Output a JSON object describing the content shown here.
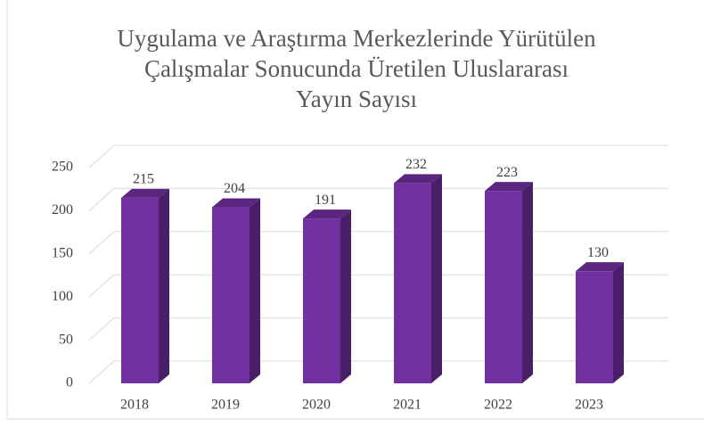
{
  "chart_data": {
    "type": "bar3d",
    "title": [
      "Uygulama  ve Araştırma  Merkezlerinde  Yürütülen",
      "Çalışmalar  Sonucunda  Üretilen Uluslararası",
      "Yayın  Sayısı"
    ],
    "categories": [
      "2018",
      "2019",
      "2020",
      "2021",
      "2022",
      "2023"
    ],
    "values": [
      215,
      204,
      191,
      232,
      223,
      130
    ],
    "color": "#7030a0",
    "ylim": [
      0,
      250
    ],
    "yticks": [
      0,
      50,
      100,
      150,
      200,
      250
    ],
    "grid": true
  }
}
